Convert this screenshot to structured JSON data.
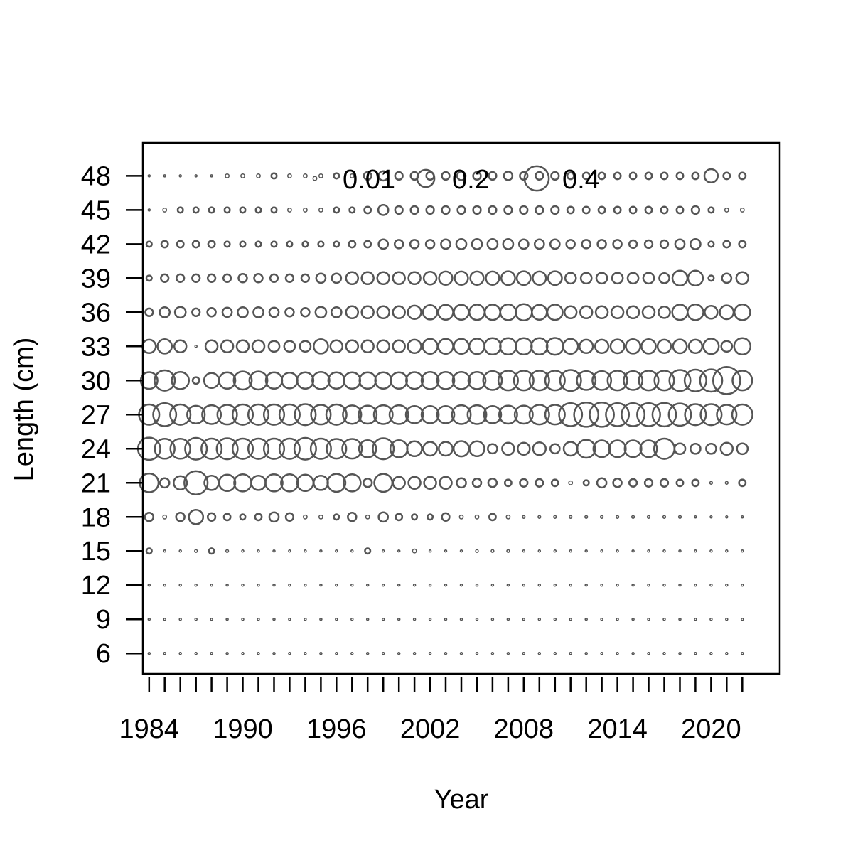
{
  "chart_data": {
    "type": "scatter",
    "subtype": "bubble",
    "xlabel": "Year",
    "ylabel": "Length (cm)",
    "x_tick_labels": [
      "1984",
      "1990",
      "1996",
      "2002",
      "2008",
      "2014",
      "2020"
    ],
    "y_tick_labels": [
      "6",
      "9",
      "12",
      "15",
      "18",
      "21",
      "24",
      "27",
      "30",
      "33",
      "36",
      "39",
      "42",
      "45",
      "48"
    ],
    "years": [
      1984,
      1985,
      1986,
      1987,
      1988,
      1989,
      1990,
      1991,
      1992,
      1993,
      1994,
      1995,
      1996,
      1997,
      1998,
      1999,
      2000,
      2001,
      2002,
      2003,
      2004,
      2005,
      2006,
      2007,
      2008,
      2009,
      2010,
      2011,
      2012,
      2013,
      2014,
      2015,
      2016,
      2017,
      2018,
      2019,
      2020,
      2021,
      2022
    ],
    "lengths": [
      6,
      9,
      12,
      15,
      18,
      21,
      24,
      27,
      30,
      33,
      36,
      39,
      42,
      45,
      48
    ],
    "xlim": [
      1983.6,
      2024.4
    ],
    "ylim": [
      4.2,
      50.9
    ],
    "legend": {
      "placement": "top",
      "entries": [
        {
          "label": "0.01",
          "value": 0.01
        },
        {
          "label": "0.2",
          "value": 0.2
        },
        {
          "label": "0.4",
          "value": 0.4
        }
      ]
    },
    "bubble_color": "#555555",
    "series": [
      {
        "length": 48,
        "values": [
          0.003,
          0.003,
          0.003,
          0.003,
          0.003,
          0.01,
          0.01,
          0.01,
          0.02,
          0.01,
          0.01,
          0.01,
          0.02,
          0.01,
          0.04,
          0.06,
          0.04,
          0.04,
          0.04,
          0.04,
          0.05,
          0.04,
          0.04,
          0.05,
          0.04,
          0.04,
          0.04,
          0.03,
          0.03,
          0.03,
          0.03,
          0.03,
          0.03,
          0.03,
          0.03,
          0.03,
          0.12,
          0.03,
          0.03
        ]
      },
      {
        "length": 45,
        "values": [
          0.003,
          0.01,
          0.02,
          0.02,
          0.02,
          0.02,
          0.02,
          0.02,
          0.02,
          0.01,
          0.01,
          0.01,
          0.02,
          0.02,
          0.03,
          0.07,
          0.04,
          0.04,
          0.04,
          0.04,
          0.04,
          0.04,
          0.04,
          0.04,
          0.04,
          0.04,
          0.04,
          0.03,
          0.03,
          0.03,
          0.03,
          0.03,
          0.03,
          0.03,
          0.03,
          0.04,
          0.02,
          0.01,
          0.01
        ]
      },
      {
        "length": 42,
        "values": [
          0.02,
          0.03,
          0.03,
          0.03,
          0.03,
          0.02,
          0.02,
          0.02,
          0.02,
          0.02,
          0.02,
          0.02,
          0.02,
          0.03,
          0.03,
          0.06,
          0.05,
          0.05,
          0.05,
          0.06,
          0.07,
          0.07,
          0.07,
          0.07,
          0.06,
          0.06,
          0.06,
          0.05,
          0.05,
          0.05,
          0.05,
          0.04,
          0.04,
          0.04,
          0.06,
          0.07,
          0.02,
          0.03,
          0.03
        ]
      },
      {
        "length": 39,
        "values": [
          0.02,
          0.04,
          0.04,
          0.04,
          0.04,
          0.04,
          0.05,
          0.05,
          0.04,
          0.04,
          0.04,
          0.06,
          0.06,
          0.1,
          0.1,
          0.1,
          0.1,
          0.1,
          0.11,
          0.12,
          0.12,
          0.12,
          0.12,
          0.13,
          0.13,
          0.12,
          0.13,
          0.08,
          0.08,
          0.08,
          0.08,
          0.08,
          0.08,
          0.07,
          0.15,
          0.15,
          0.02,
          0.06,
          0.1
        ]
      },
      {
        "length": 36,
        "values": [
          0.04,
          0.07,
          0.08,
          0.04,
          0.05,
          0.06,
          0.07,
          0.07,
          0.06,
          0.05,
          0.05,
          0.08,
          0.07,
          0.1,
          0.1,
          0.1,
          0.1,
          0.12,
          0.14,
          0.15,
          0.15,
          0.16,
          0.16,
          0.17,
          0.18,
          0.15,
          0.16,
          0.1,
          0.1,
          0.1,
          0.1,
          0.1,
          0.1,
          0.09,
          0.16,
          0.17,
          0.11,
          0.13,
          0.17
        ]
      },
      {
        "length": 33,
        "values": [
          0.12,
          0.14,
          0.1,
          0.0,
          0.1,
          0.1,
          0.1,
          0.1,
          0.08,
          0.08,
          0.08,
          0.14,
          0.1,
          0.1,
          0.1,
          0.1,
          0.1,
          0.12,
          0.15,
          0.15,
          0.15,
          0.16,
          0.18,
          0.18,
          0.18,
          0.18,
          0.19,
          0.15,
          0.12,
          0.12,
          0.13,
          0.14,
          0.14,
          0.12,
          0.13,
          0.12,
          0.16,
          0.08,
          0.18
        ]
      },
      {
        "length": 30,
        "values": [
          0.19,
          0.28,
          0.2,
          0.03,
          0.15,
          0.18,
          0.22,
          0.22,
          0.18,
          0.17,
          0.18,
          0.2,
          0.18,
          0.18,
          0.18,
          0.18,
          0.18,
          0.19,
          0.2,
          0.2,
          0.2,
          0.2,
          0.24,
          0.26,
          0.26,
          0.26,
          0.26,
          0.3,
          0.24,
          0.24,
          0.26,
          0.24,
          0.26,
          0.26,
          0.3,
          0.32,
          0.34,
          0.5,
          0.26
        ]
      },
      {
        "length": 27,
        "values": [
          0.28,
          0.36,
          0.28,
          0.21,
          0.24,
          0.26,
          0.28,
          0.28,
          0.28,
          0.28,
          0.3,
          0.26,
          0.28,
          0.23,
          0.22,
          0.24,
          0.24,
          0.2,
          0.2,
          0.2,
          0.24,
          0.24,
          0.2,
          0.22,
          0.22,
          0.26,
          0.26,
          0.36,
          0.4,
          0.4,
          0.36,
          0.36,
          0.36,
          0.38,
          0.34,
          0.3,
          0.3,
          0.26,
          0.28
        ]
      },
      {
        "length": 24,
        "values": [
          0.34,
          0.27,
          0.27,
          0.32,
          0.28,
          0.3,
          0.28,
          0.28,
          0.28,
          0.28,
          0.32,
          0.28,
          0.26,
          0.26,
          0.2,
          0.3,
          0.2,
          0.15,
          0.13,
          0.13,
          0.16,
          0.15,
          0.06,
          0.1,
          0.1,
          0.11,
          0.06,
          0.13,
          0.22,
          0.19,
          0.19,
          0.19,
          0.19,
          0.28,
          0.08,
          0.07,
          0.07,
          0.1,
          0.08
        ]
      },
      {
        "length": 21,
        "values": [
          0.24,
          0.06,
          0.12,
          0.37,
          0.14,
          0.18,
          0.2,
          0.14,
          0.2,
          0.2,
          0.18,
          0.14,
          0.22,
          0.2,
          0.05,
          0.22,
          0.1,
          0.1,
          0.1,
          0.1,
          0.06,
          0.05,
          0.05,
          0.03,
          0.04,
          0.04,
          0.03,
          0.01,
          0.02,
          0.06,
          0.05,
          0.04,
          0.04,
          0.04,
          0.03,
          0.03,
          0.005,
          0.005,
          0.03
        ]
      },
      {
        "length": 18,
        "values": [
          0.05,
          0.01,
          0.05,
          0.14,
          0.04,
          0.03,
          0.02,
          0.03,
          0.06,
          0.04,
          0.01,
          0.01,
          0.02,
          0.05,
          0.01,
          0.06,
          0.03,
          0.02,
          0.02,
          0.04,
          0.01,
          0.01,
          0.03,
          0.01,
          0.005,
          0.005,
          0.005,
          0.005,
          0.005,
          0.005,
          0.005,
          0.005,
          0.005,
          0.005,
          0.005,
          0.003,
          0.003,
          0.003,
          0.003
        ]
      },
      {
        "length": 15,
        "values": [
          0.02,
          0.003,
          0.003,
          0.005,
          0.02,
          0.005,
          0.003,
          0.003,
          0.003,
          0.003,
          0.003,
          0.003,
          0.003,
          0.003,
          0.02,
          0.003,
          0.003,
          0.01,
          0.003,
          0.003,
          0.003,
          0.005,
          0.005,
          0.005,
          0.003,
          0.003,
          0.003,
          0.003,
          0.003,
          0.003,
          0.003,
          0.003,
          0.003,
          0.003,
          0.003,
          0.003,
          0.003,
          0.003,
          0.003
        ]
      },
      {
        "length": 12,
        "values": [
          0.003,
          0.003,
          0.003,
          0.003,
          0.003,
          0.003,
          0.003,
          0.003,
          0.003,
          0.003,
          0.003,
          0.003,
          0.003,
          0.003,
          0.003,
          0.003,
          0.003,
          0.003,
          0.003,
          0.003,
          0.003,
          0.003,
          0.003,
          0.003,
          0.003,
          0.003,
          0.003,
          0.003,
          0.003,
          0.003,
          0.003,
          0.003,
          0.003,
          0.003,
          0.003,
          0.003,
          0.003,
          0.003,
          0.003
        ]
      },
      {
        "length": 9,
        "values": [
          0.003,
          0.003,
          0.003,
          0.003,
          0.003,
          0.003,
          0.003,
          0.003,
          0.003,
          0.003,
          0.003,
          0.003,
          0.003,
          0.003,
          0.003,
          0.003,
          0.003,
          0.003,
          0.003,
          0.003,
          0.003,
          0.003,
          0.003,
          0.003,
          0.003,
          0.003,
          0.003,
          0.003,
          0.003,
          0.003,
          0.003,
          0.003,
          0.003,
          0.003,
          0.003,
          0.003,
          0.003,
          0.003,
          0.003
        ]
      },
      {
        "length": 6,
        "values": [
          0.003,
          0.003,
          0.003,
          0.003,
          0.003,
          0.003,
          0.003,
          0.003,
          0.003,
          0.003,
          0.003,
          0.003,
          0.003,
          0.003,
          0.003,
          0.003,
          0.003,
          0.003,
          0.003,
          0.003,
          0.003,
          0.003,
          0.003,
          0.003,
          0.003,
          0.003,
          0.003,
          0.003,
          0.003,
          0.003,
          0.003,
          0.003,
          0.003,
          0.003,
          0.003,
          0.003,
          0.003,
          0.003,
          0.003
        ]
      }
    ]
  }
}
